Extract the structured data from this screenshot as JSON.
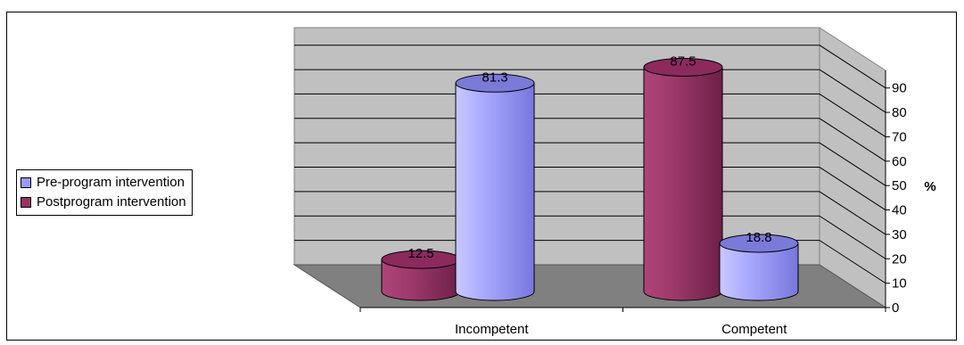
{
  "chart_data": {
    "type": "bar",
    "categories": [
      "Incompetent",
      "Competent"
    ],
    "series": [
      {
        "name": "Pre-program intervention",
        "values": [
          81.3,
          18.8
        ],
        "color": "#9999ff"
      },
      {
        "name": "Postprogram intervention",
        "values": [
          12.5,
          87.5
        ],
        "color": "#993366"
      }
    ],
    "ylabel": "%",
    "ylim": [
      0,
      90
    ],
    "yticks": [
      0,
      10,
      20,
      30,
      40,
      50,
      60,
      70,
      80,
      90
    ],
    "grid": true,
    "legend_position": "left",
    "data_labels": true
  }
}
